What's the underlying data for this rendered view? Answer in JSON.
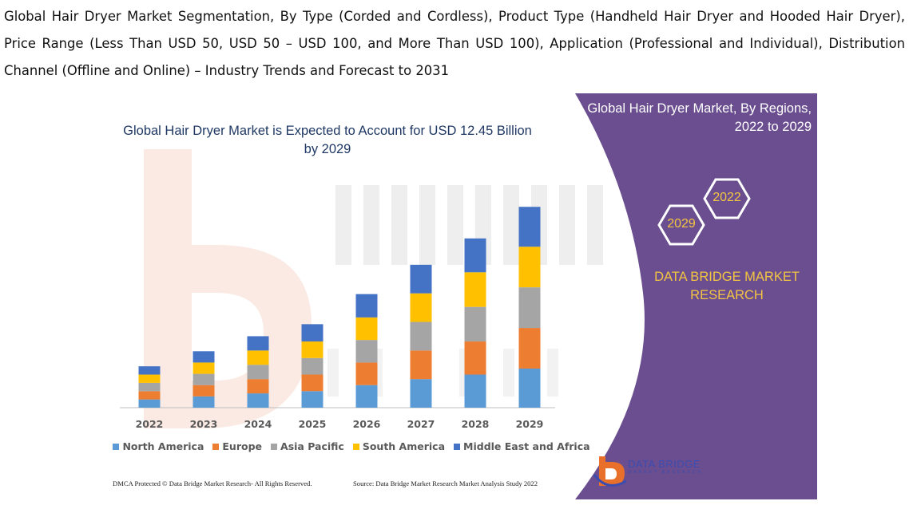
{
  "heading": "Global Hair Dryer Market Segmentation, By Type (Corded and Cordless), Product Type (Handheld Hair Dryer and Hooded Hair Dryer), Price Range (Less Than USD 50, USD 50 – USD 100, and More Than USD 100), Application (Professional and Individual), Distribution Channel (Offline and Online) – Industry Trends and Forecast to 2031",
  "chart_data": {
    "type": "bar",
    "stacked": true,
    "title": "Global Hair Dryer Market is Expected to Account for USD 12.45 Billion by 2029",
    "categories": [
      "2022",
      "2023",
      "2024",
      "2025",
      "2026",
      "2027",
      "2028",
      "2029"
    ],
    "series": [
      {
        "name": "North America",
        "color": "#5b9bd5",
        "values": [
          11,
          15,
          19,
          22,
          30,
          38,
          44,
          52
        ]
      },
      {
        "name": "Europe",
        "color": "#ed7d31",
        "values": [
          11,
          15,
          19,
          22,
          30,
          38,
          44,
          54
        ]
      },
      {
        "name": "Asia Pacific",
        "color": "#a5a5a5",
        "values": [
          11,
          15,
          19,
          22,
          30,
          38,
          46,
          54
        ]
      },
      {
        "name": "South America",
        "color": "#ffc000",
        "values": [
          11,
          15,
          19,
          22,
          30,
          38,
          46,
          54
        ]
      },
      {
        "name": "Middle East and Africa",
        "color": "#4472c4",
        "values": [
          11,
          15,
          19,
          23,
          31,
          38,
          45,
          53
        ]
      }
    ],
    "xlabel": "",
    "ylabel": "",
    "ylim": [
      0,
      280
    ],
    "grid": false,
    "legend": "bottom"
  },
  "side": {
    "title_line1": "Global Hair Dryer Market, By Regions,",
    "title_line2": "2022 to 2029",
    "hex_start": "2022",
    "hex_end": "2029",
    "brand_line1": "DATA BRIDGE MARKET",
    "brand_line2": "RESEARCH",
    "panel_color": "#6a4e8f"
  },
  "footer": {
    "left": "DMCA Protected © Data Bridge Market Research- All Rights Reserved.",
    "right": "Source: Data Bridge Market Research Market Analysis Study 2022"
  },
  "logo": {
    "line1": "DATA BRIDGE",
    "line2": "MARKET RESEARCH"
  }
}
